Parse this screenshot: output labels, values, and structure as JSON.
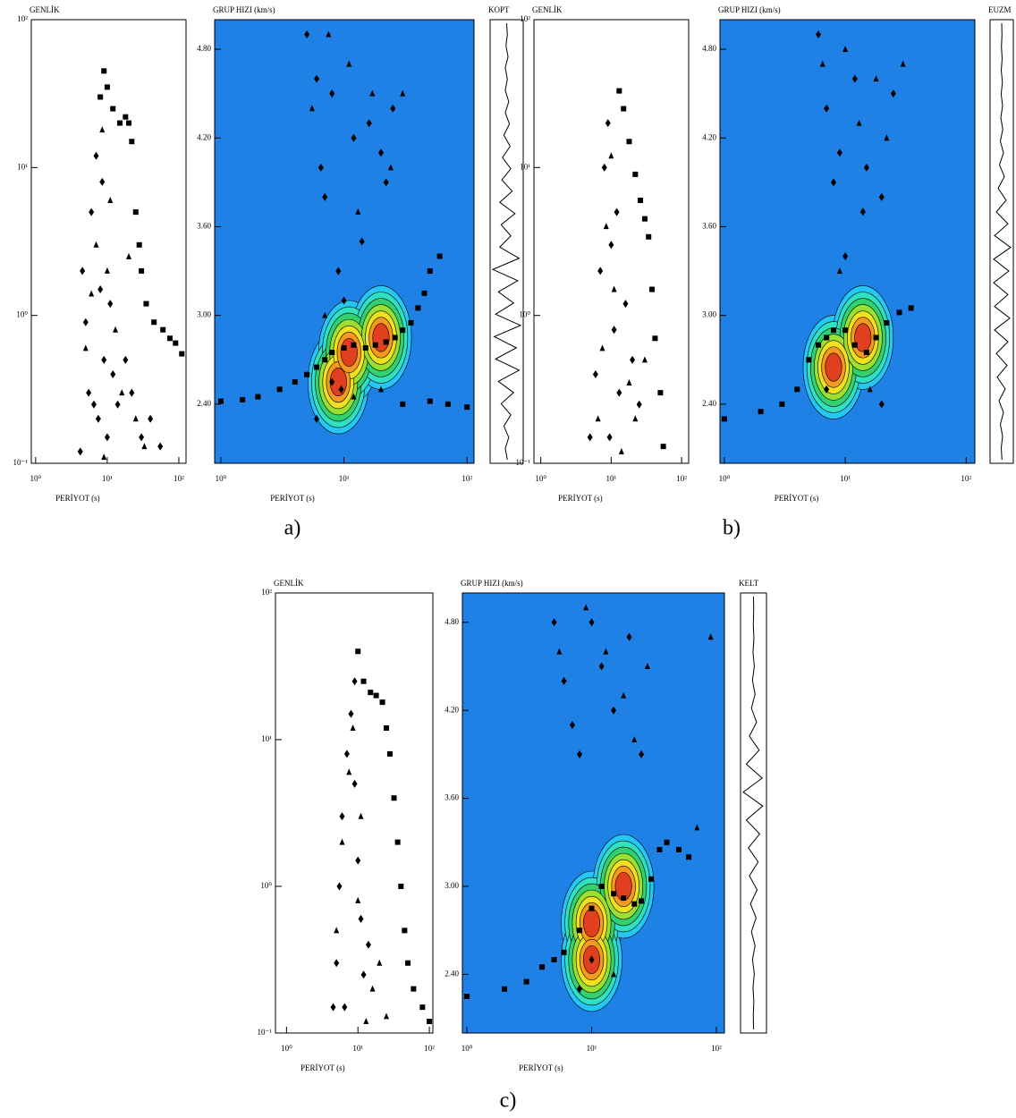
{
  "captions": [
    "a)",
    "b)",
    "c)"
  ],
  "chart_data": [
    {
      "type": "scatter",
      "title": "GENLİK",
      "xlabel": "PERİYOT (s)",
      "xscale": "log",
      "yscale": "log",
      "xlim": [
        0.87,
        126
      ],
      "ylim": [
        0.1,
        100
      ],
      "xticks": [
        {
          "value": 1,
          "label": "10⁰"
        },
        {
          "value": 10,
          "label": "10¹"
        },
        {
          "value": 100,
          "label": "10²"
        }
      ],
      "yticks": [
        {
          "value": 0.1,
          "label": "10⁻¹"
        },
        {
          "value": 1,
          "label": "10⁰"
        },
        {
          "value": 10,
          "label": "10¹"
        },
        {
          "value": 100,
          "label": "10²"
        }
      ],
      "series": [
        {
          "marker": "square",
          "color": "#000000",
          "x": [
            8,
            9,
            10,
            12,
            15,
            18,
            20,
            22,
            25,
            28,
            30,
            35,
            45,
            60,
            75,
            90,
            110
          ],
          "values": [
            30,
            45,
            35,
            25,
            20,
            22,
            20,
            15,
            5,
            3,
            2,
            1.2,
            0.9,
            0.8,
            0.7,
            0.65,
            0.55
          ]
        },
        {
          "marker": "diamond",
          "color": "#000000",
          "x": [
            4.5,
            5,
            5.5,
            6,
            7,
            7.5,
            8,
            9,
            10,
            11,
            12,
            14,
            18,
            22,
            30,
            40,
            55,
            4.2,
            6.5,
            8.5
          ],
          "values": [
            2,
            0.9,
            0.3,
            5,
            12,
            0.2,
            1.5,
            0.5,
            0.15,
            1.2,
            0.4,
            0.25,
            0.5,
            0.3,
            0.15,
            0.2,
            0.13,
            0.12,
            0.25,
            8
          ]
        },
        {
          "marker": "triangle",
          "color": "#000000",
          "x": [
            5,
            6,
            7,
            8.5,
            10,
            13,
            16,
            20,
            25,
            33,
            9,
            11
          ],
          "values": [
            0.6,
            1.4,
            3,
            18,
            2,
            0.8,
            0.3,
            2.5,
            0.2,
            0.13,
            0.11,
            6
          ]
        }
      ]
    },
    {
      "type": "contour",
      "title": "GRUP HIZI (km/s)",
      "xlabel": "PERİYOT (s)",
      "xscale": "log",
      "xlim": [
        0.89,
        114
      ],
      "ylim": [
        2.0,
        5.0
      ],
      "xticks": [
        {
          "value": 1,
          "label": "10⁰"
        },
        {
          "value": 10,
          "label": "10¹"
        },
        {
          "value": 100,
          "label": "10²"
        }
      ],
      "yticks": [
        {
          "value": 2.4,
          "label": "2.40"
        },
        {
          "value": 3,
          "label": "3.00"
        },
        {
          "value": 3.6,
          "label": "3.60"
        },
        {
          "value": 4.2,
          "label": "4.20"
        },
        {
          "value": 4.8,
          "label": "4.80"
        }
      ],
      "background": "#1f80e6",
      "contour_colors": [
        "#25c8f5",
        "#30e0c0",
        "#33d070",
        "#9be030",
        "#f0e020",
        "#f59a20",
        "#e04020"
      ],
      "peaks": {
        "x": [
          9,
          11,
          20
        ],
        "values": [
          2.55,
          2.75,
          2.85
        ]
      },
      "series": [
        {
          "marker": "square",
          "color": "#000000",
          "x": [
            1,
            1.5,
            2,
            3,
            4,
            5,
            6,
            7,
            8,
            10,
            12,
            15,
            18,
            22,
            26,
            30,
            35,
            40,
            45,
            50,
            60,
            30,
            50,
            70,
            100
          ],
          "values": [
            2.42,
            2.43,
            2.45,
            2.5,
            2.55,
            2.6,
            2.65,
            2.7,
            2.75,
            2.78,
            2.8,
            2.78,
            2.8,
            2.82,
            2.85,
            2.9,
            2.95,
            3.05,
            3.15,
            3.3,
            3.4,
            2.4,
            2.42,
            2.4,
            2.38
          ]
        },
        {
          "marker": "diamond",
          "color": "#000000",
          "x": [
            5,
            6,
            6.5,
            7,
            8,
            9,
            10,
            12,
            14,
            16,
            20,
            22,
            25,
            9.5,
            8,
            6
          ],
          "values": [
            4.9,
            4.6,
            4.0,
            3.8,
            4.5,
            3.3,
            3.1,
            4.2,
            3.5,
            4.3,
            4.1,
            3.9,
            4.4,
            2.5,
            2.55,
            2.3
          ]
        },
        {
          "marker": "triangle",
          "color": "#000000",
          "x": [
            5.5,
            7.5,
            11,
            13,
            17,
            24,
            30,
            7,
            12,
            20
          ],
          "values": [
            4.4,
            4.9,
            4.7,
            3.7,
            4.5,
            4.0,
            4.5,
            3.0,
            2.45,
            2.5
          ]
        }
      ]
    },
    {
      "type": "trace",
      "title": "KOPT",
      "color": "#000000",
      "values": [
        0,
        0.05,
        -0.05,
        0.1,
        -0.1,
        0.05,
        -0.1,
        0.15,
        -0.1,
        0.2,
        -0.2,
        0.25,
        -0.3,
        0.3,
        -0.35,
        0.4,
        -0.5,
        0.6,
        -0.4,
        0.3,
        -0.5,
        0.9,
        -1,
        0.8,
        -0.6,
        0.5,
        -0.8,
        1,
        -0.9,
        0.7,
        -0.8,
        0.9,
        -0.6,
        0.5,
        -0.4,
        0.3,
        -0.2,
        0.15,
        -0.1,
        0.05
      ]
    },
    {
      "type": "scatter",
      "title": "GENLİK",
      "xlabel": "PERİYOT (s)",
      "xscale": "log",
      "yscale": "log",
      "xlim": [
        0.8,
        126
      ],
      "ylim": [
        0.1,
        100
      ],
      "xticks": [
        {
          "value": 1,
          "label": "10⁰"
        },
        {
          "value": 10,
          "label": "10¹"
        },
        {
          "value": 100,
          "label": "10²"
        }
      ],
      "yticks": [
        {
          "value": 0.1,
          "label": "10⁻¹"
        },
        {
          "value": 1,
          "label": "10⁰"
        },
        {
          "value": 10,
          "label": "10¹"
        },
        {
          "value": 100,
          "label": "10²"
        }
      ],
      "series": [
        {
          "marker": "square",
          "color": "#000000",
          "x": [
            13,
            15,
            18,
            22,
            26,
            30,
            34,
            38,
            42,
            50,
            55
          ],
          "values": [
            33,
            25,
            15,
            9,
            6,
            4.5,
            3.4,
            1.5,
            0.7,
            0.3,
            0.13
          ]
        },
        {
          "marker": "diamond",
          "color": "#000000",
          "x": [
            5,
            6,
            7,
            8,
            9,
            10,
            11,
            13,
            16,
            20,
            25,
            9.5,
            12
          ],
          "values": [
            0.15,
            0.4,
            2,
            10,
            20,
            3,
            0.8,
            0.3,
            1.2,
            0.5,
            0.25,
            0.15,
            5
          ]
        },
        {
          "marker": "triangle",
          "color": "#000000",
          "x": [
            6.5,
            7.5,
            8.5,
            11,
            14,
            18,
            22,
            30,
            10
          ],
          "values": [
            0.2,
            0.6,
            4,
            1.5,
            0.12,
            0.35,
            0.2,
            0.5,
            12
          ]
        }
      ]
    },
    {
      "type": "contour",
      "title": "GRUP HIZI (km/s)",
      "xlabel": "PERİYOT (s)",
      "xscale": "log",
      "xlim": [
        0.92,
        118
      ],
      "ylim": [
        2.0,
        5.0
      ],
      "xticks": [
        {
          "value": 1,
          "label": "10⁰"
        },
        {
          "value": 10,
          "label": "10¹"
        },
        {
          "value": 100,
          "label": "10²"
        }
      ],
      "yticks": [
        {
          "value": 2.4,
          "label": "2.40"
        },
        {
          "value": 3,
          "label": "3.00"
        },
        {
          "value": 3.6,
          "label": "3.60"
        },
        {
          "value": 4.2,
          "label": "4.20"
        },
        {
          "value": 4.8,
          "label": "4.80"
        }
      ],
      "background": "#1f80e6",
      "contour_colors": [
        "#25c8f5",
        "#30e0c0",
        "#33d070",
        "#9be030",
        "#f0e020",
        "#f59a20",
        "#e04020"
      ],
      "peaks": {
        "x": [
          8,
          14
        ],
        "values": [
          2.65,
          2.85
        ]
      },
      "series": [
        {
          "marker": "square",
          "color": "#000000",
          "x": [
            1,
            2,
            3,
            4,
            5,
            6,
            7,
            8,
            10,
            12,
            15,
            18,
            22,
            28,
            35
          ],
          "values": [
            2.3,
            2.35,
            2.4,
            2.5,
            2.7,
            2.8,
            2.85,
            2.9,
            2.9,
            2.8,
            2.75,
            2.85,
            2.95,
            3.02,
            3.05
          ]
        },
        {
          "marker": "diamond",
          "color": "#000000",
          "x": [
            6,
            7,
            8,
            9,
            12,
            15,
            20,
            25,
            10,
            14,
            7,
            20
          ],
          "values": [
            4.9,
            4.4,
            3.9,
            4.1,
            4.6,
            4.0,
            3.8,
            4.5,
            3.4,
            3.7,
            2.5,
            2.4
          ]
        },
        {
          "marker": "triangle",
          "color": "#000000",
          "x": [
            6.5,
            10,
            13,
            18,
            22,
            30,
            9,
            16
          ],
          "values": [
            4.7,
            4.8,
            4.3,
            4.6,
            4.2,
            4.7,
            3.3,
            2.5
          ]
        }
      ]
    },
    {
      "type": "trace",
      "title": "EUZM",
      "color": "#000000",
      "values": [
        0,
        0.03,
        -0.03,
        0.05,
        -0.05,
        0.08,
        -0.06,
        0.1,
        -0.1,
        0.12,
        -0.15,
        0.2,
        -0.25,
        0.3,
        -0.4,
        0.5,
        -0.6,
        0.7,
        -0.8,
        1,
        -0.9,
        0.8,
        -0.9,
        0.7,
        -0.8,
        0.9,
        -0.8,
        0.7,
        -0.6,
        0.6,
        -0.5,
        0.4,
        -0.3,
        0.2,
        -0.15,
        0.1,
        -0.05,
        0.03
      ]
    },
    {
      "type": "scatter",
      "title": "GENLİK",
      "xlabel": "PERİYOT (s)",
      "xscale": "log",
      "yscale": "log",
      "xlim": [
        0.7,
        112
      ],
      "ylim": [
        0.1,
        100
      ],
      "xticks": [
        {
          "value": 1,
          "label": "10⁰"
        },
        {
          "value": 10,
          "label": "10¹"
        },
        {
          "value": 100,
          "label": "10²"
        }
      ],
      "yticks": [
        {
          "value": 0.1,
          "label": "10⁻¹"
        },
        {
          "value": 1,
          "label": "10⁰"
        },
        {
          "value": 10,
          "label": "10¹"
        },
        {
          "value": 100,
          "label": "10²"
        }
      ],
      "series": [
        {
          "marker": "square",
          "color": "#000000",
          "x": [
            10,
            12,
            15,
            18,
            22,
            25,
            28,
            32,
            36,
            40,
            45,
            50,
            60,
            80,
            100
          ],
          "values": [
            40,
            25,
            21,
            20,
            18,
            12,
            8,
            4,
            2,
            1,
            0.5,
            0.3,
            0.2,
            0.15,
            0.12
          ]
        },
        {
          "marker": "diamond",
          "color": "#000000",
          "x": [
            4.5,
            5,
            5.5,
            6,
            7,
            8,
            9,
            10,
            11,
            12,
            14,
            6.5,
            9
          ],
          "values": [
            0.15,
            0.3,
            1,
            3,
            8,
            15,
            5,
            1.5,
            0.6,
            0.25,
            0.4,
            0.15,
            25
          ]
        },
        {
          "marker": "triangle",
          "color": "#000000",
          "x": [
            5,
            6,
            7.5,
            8.5,
            11,
            13,
            16,
            20,
            25,
            10
          ],
          "values": [
            0.5,
            2,
            6,
            12,
            3,
            0.12,
            0.2,
            0.3,
            0.13,
            0.8
          ]
        }
      ]
    },
    {
      "type": "contour",
      "title": "GRUP HIZI (km/s)",
      "xlabel": "PERİYOT (s)",
      "xscale": "log",
      "xlim": [
        0.92,
        116
      ],
      "ylim": [
        2.0,
        5.0
      ],
      "xticks": [
        {
          "value": 1,
          "label": "10⁰"
        },
        {
          "value": 10,
          "label": "10¹"
        },
        {
          "value": 100,
          "label": "10²"
        }
      ],
      "yticks": [
        {
          "value": 2.4,
          "label": "2.40"
        },
        {
          "value": 3,
          "label": "3.00"
        },
        {
          "value": 3.6,
          "label": "3.60"
        },
        {
          "value": 4.2,
          "label": "4.20"
        },
        {
          "value": 4.8,
          "label": "4.80"
        }
      ],
      "background": "#1f80e6",
      "contour_colors": [
        "#25c8f5",
        "#30e0c0",
        "#33d070",
        "#9be030",
        "#f0e020",
        "#f59a20",
        "#e04020"
      ],
      "peaks": {
        "x": [
          10,
          10,
          18
        ],
        "values": [
          2.75,
          2.5,
          3.0
        ]
      },
      "series": [
        {
          "marker": "square",
          "color": "#000000",
          "x": [
            1,
            2,
            3,
            4,
            5,
            6,
            8,
            10,
            12,
            15,
            18,
            22,
            25,
            30,
            35,
            40,
            50,
            60
          ],
          "values": [
            2.25,
            2.3,
            2.35,
            2.45,
            2.5,
            2.55,
            2.7,
            2.85,
            3.0,
            2.95,
            2.92,
            2.88,
            2.9,
            3.05,
            3.25,
            3.3,
            3.25,
            3.2
          ]
        },
        {
          "marker": "diamond",
          "color": "#000000",
          "x": [
            5,
            6,
            7,
            8,
            10,
            12,
            15,
            20,
            25,
            8,
            10
          ],
          "values": [
            4.8,
            4.4,
            4.1,
            3.9,
            4.8,
            4.5,
            4.2,
            4.7,
            3.9,
            2.3,
            2.5
          ]
        },
        {
          "marker": "triangle",
          "color": "#000000",
          "x": [
            5.5,
            9,
            13,
            18,
            22,
            28,
            70,
            90,
            15
          ],
          "values": [
            4.6,
            4.9,
            4.6,
            4.3,
            4.0,
            4.5,
            3.4,
            4.7,
            2.4
          ]
        }
      ]
    },
    {
      "type": "trace",
      "title": "KELT",
      "color": "#000000",
      "values": [
        0,
        0.02,
        -0.02,
        0.04,
        -0.05,
        0.08,
        -0.1,
        0.15,
        -0.2,
        0.3,
        -0.4,
        0.55,
        -0.7,
        0.85,
        -1,
        0.9,
        -0.7,
        0.6,
        -0.5,
        0.45,
        -0.4,
        0.35,
        -0.3,
        0.25,
        -0.2,
        0.15,
        -0.1,
        0.08,
        -0.05,
        0.03,
        -0.02,
        0.01
      ]
    }
  ]
}
